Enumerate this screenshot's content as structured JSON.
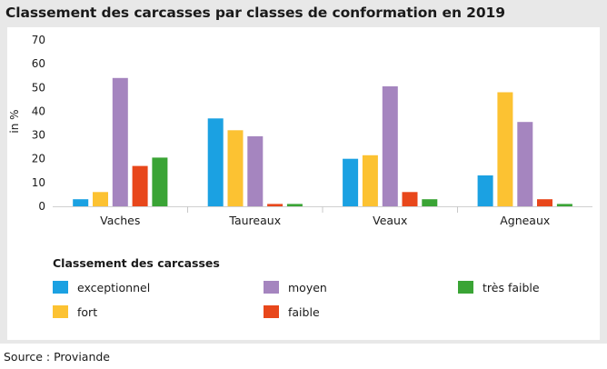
{
  "title": "Classement des carcasses par classes de conformation en 2019",
  "source": "Source : Proviande",
  "legend": {
    "title": "Classement des carcasses"
  },
  "colors": {
    "exceptionnel": "#1ba1e2",
    "fort": "#fcc232",
    "moyen": "#a585bf",
    "faible": "#e8471b",
    "tres_faible": "#3aa435"
  },
  "chart_data": {
    "type": "bar",
    "categories": [
      "Vaches",
      "Taureaux",
      "Veaux",
      "Agneaux"
    ],
    "ylabel": "in %",
    "xlabel": "",
    "ylim": [
      0,
      70
    ],
    "yticks": [
      0,
      10,
      20,
      30,
      40,
      50,
      60,
      70
    ],
    "grid": false,
    "legend_position": "bottom",
    "series": [
      {
        "name": "exceptionnel",
        "color": "#1ba1e2",
        "values": [
          3,
          37,
          20,
          13
        ]
      },
      {
        "name": "fort",
        "color": "#fcc232",
        "values": [
          6,
          32,
          21.5,
          48
        ]
      },
      {
        "name": "moyen",
        "color": "#a585bf",
        "values": [
          54,
          29.5,
          50.5,
          35.5
        ]
      },
      {
        "name": "faible",
        "color": "#e8471b",
        "values": [
          17,
          1,
          6,
          3
        ]
      },
      {
        "name": "très faible",
        "color": "#3aa435",
        "values": [
          20.5,
          1,
          3,
          1
        ]
      }
    ]
  }
}
